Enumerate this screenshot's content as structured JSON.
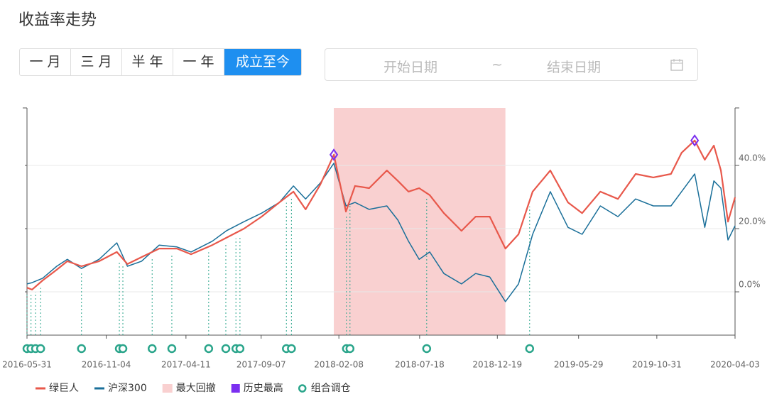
{
  "header": {
    "title": "收益率走势"
  },
  "range_buttons": [
    "一 月",
    "三 月",
    "半 年",
    "一 年",
    "成立至今"
  ],
  "active_range": 4,
  "date_range": {
    "start_placeholder": "开始日期",
    "separator": "~",
    "end_placeholder": "结束日期"
  },
  "chart_data": {
    "type": "line",
    "x": [
      "2016-05-31",
      "2016-06-10",
      "2016-07-01",
      "2016-07-29",
      "2016-08-19",
      "2016-09-16",
      "2016-10-21",
      "2016-11-25",
      "2016-12-16",
      "2017-01-13",
      "2017-02-17",
      "2017-03-24",
      "2017-04-21",
      "2017-06-02",
      "2017-06-30",
      "2017-08-04",
      "2017-09-08",
      "2017-10-13",
      "2017-11-10",
      "2017-12-04",
      "2018-01-02",
      "2018-01-29",
      "2018-02-22",
      "2018-03-12",
      "2018-04-09",
      "2018-05-14",
      "2018-06-05",
      "2018-06-26",
      "2018-07-17",
      "2018-08-07",
      "2018-09-04",
      "2018-10-09",
      "2018-11-06",
      "2018-12-04",
      "2019-01-04",
      "2019-01-30",
      "2019-02-27",
      "2019-04-03",
      "2019-05-08",
      "2019-06-05",
      "2019-07-11",
      "2019-08-15",
      "2019-09-19",
      "2019-10-24",
      "2019-11-28",
      "2019-12-19",
      "2020-01-14",
      "2020-02-03",
      "2020-02-21",
      "2020-03-06",
      "2020-03-20",
      "2020-04-03"
    ],
    "series": [
      {
        "name": "绿巨人",
        "color": "#e8584b",
        "values": [
          1.3,
          0.7,
          3.6,
          7.0,
          9.7,
          8.1,
          9.7,
          12.6,
          8.8,
          11.0,
          13.7,
          13.7,
          11.9,
          14.8,
          17.1,
          20.0,
          23.8,
          28.3,
          31.7,
          26.1,
          33.9,
          43.4,
          25.4,
          33.5,
          32.8,
          38.4,
          35.1,
          31.7,
          32.8,
          30.6,
          24.9,
          19.3,
          23.8,
          23.8,
          13.7,
          18.2,
          31.7,
          38.4,
          28.3,
          24.9,
          31.7,
          29.4,
          37.3,
          36.2,
          37.3,
          44.0,
          47.9,
          41.8,
          46.3,
          38.4,
          22.2,
          29.9
        ]
      },
      {
        "name": "沪深300",
        "color": "#1a6f99",
        "values": [
          2.5,
          2.9,
          4.3,
          8.1,
          10.3,
          7.4,
          10.3,
          15.5,
          8.1,
          9.7,
          14.8,
          14.2,
          12.6,
          16.0,
          19.3,
          22.2,
          24.9,
          28.3,
          33.5,
          29.4,
          34.4,
          40.7,
          27.2,
          28.3,
          26.1,
          27.2,
          22.7,
          16.0,
          10.3,
          12.6,
          5.8,
          2.5,
          5.8,
          4.7,
          -3.1,
          2.5,
          18.2,
          31.7,
          20.4,
          18.2,
          27.2,
          23.8,
          29.4,
          27.2,
          27.2,
          31.7,
          37.3,
          20.4,
          35.1,
          32.8,
          16.4,
          20.9
        ]
      }
    ],
    "drawdown": {
      "name": "最大回撤",
      "color": "#f9d0d0",
      "start": "2018-01-29",
      "end": "2019-01-04"
    },
    "highs": {
      "name": "历史最高",
      "color": "#7b2ff0",
      "points": [
        {
          "x": "2018-01-29",
          "y": 43.4
        },
        {
          "x": "2020-01-14",
          "y": 47.9
        }
      ]
    },
    "rebalance": {
      "name": "组合调仓",
      "color": "#2aa58b",
      "dates": [
        "2016-05-31",
        "2016-06-08",
        "2016-06-17",
        "2016-06-27",
        "2016-09-16",
        "2016-11-30",
        "2016-12-07",
        "2017-02-03",
        "2017-03-14",
        "2017-05-26",
        "2017-06-29",
        "2017-07-19",
        "2017-07-27",
        "2017-10-27",
        "2017-11-06",
        "2018-02-23",
        "2018-03-02",
        "2018-08-01",
        "2019-02-21"
      ]
    },
    "xlim": [
      "2016-05-31",
      "2020-04-03"
    ],
    "xticks": [
      "2016-05-31",
      "2016-11-04",
      "2017-04-11",
      "2017-09-07",
      "2018-02-08",
      "2018-07-18",
      "2018-12-19",
      "2019-05-29",
      "2019-10-31",
      "2020-04-03"
    ],
    "ylim": [
      -13.7,
      58.2
    ],
    "yticks": [
      {
        "value": 0,
        "label": "0.0%"
      },
      {
        "value": 20,
        "label": "20.0%"
      },
      {
        "value": 40,
        "label": "40.0%"
      }
    ],
    "grid": true
  }
}
